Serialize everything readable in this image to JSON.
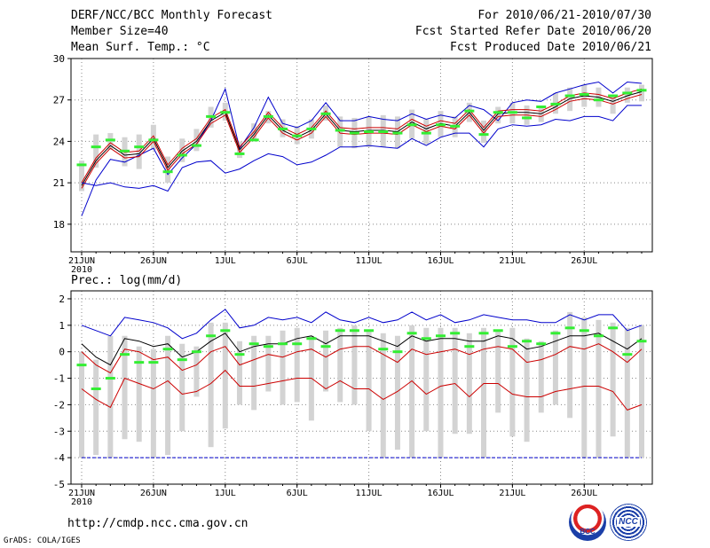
{
  "header": {
    "title": "DERF/NCC/BCC Monthly Forecast",
    "member": "Member Size=40",
    "variable": "Mean Surf. Temp.: °C",
    "period": "For 2010/06/21-2010/07/30",
    "refer": "Fcst Started Refer Date 2010/06/20",
    "produced": "Fcst Produced Date 2010/06/21"
  },
  "footer": {
    "url": "http://cmdp.ncc.cma.gov.cn",
    "grads": "GrADS: COLA/IGES",
    "logo1_text": "BCC",
    "logo2_text": "NCC"
  },
  "chart_data": [
    {
      "type": "line",
      "title": "Mean Surf. Temp.: °C",
      "ylim": [
        16,
        30
      ],
      "yticks": [
        18,
        21,
        24,
        27,
        30
      ],
      "xticks": [
        {
          "i": 0,
          "label": "21JUN"
        },
        {
          "i": 5,
          "label": "26JUN"
        },
        {
          "i": 10,
          "label": "1JUL"
        },
        {
          "i": 15,
          "label": "6JUL"
        },
        {
          "i": 20,
          "label": "11JUL"
        },
        {
          "i": 25,
          "label": "16JUL"
        },
        {
          "i": 30,
          "label": "21JUL"
        },
        {
          "i": 35,
          "label": "26JUL"
        }
      ],
      "year_label": "2010",
      "days": 40,
      "series": [
        {
          "name": "max",
          "color": "#0000cc",
          "values": [
            18.6,
            21.2,
            22.7,
            22.5,
            23.0,
            23.5,
            21.6,
            22.8,
            23.8,
            25.5,
            27.8,
            23.5,
            25.0,
            27.2,
            25.3,
            25.0,
            25.5,
            26.8,
            25.5,
            25.5,
            25.8,
            25.6,
            25.5,
            26.0,
            25.6,
            25.9,
            25.7,
            26.6,
            26.3,
            25.5,
            26.8,
            27.0,
            26.9,
            27.5,
            27.8,
            28.1,
            28.3,
            27.5,
            28.3,
            28.2
          ]
        },
        {
          "name": "upper",
          "color": "#cc0000",
          "values": [
            21.0,
            22.8,
            23.9,
            23.2,
            23.3,
            24.4,
            22.3,
            23.5,
            24.2,
            25.7,
            26.3,
            23.6,
            24.7,
            26.1,
            25.0,
            24.5,
            25.0,
            26.2,
            25.0,
            24.9,
            25.0,
            25.0,
            24.9,
            25.6,
            25.1,
            25.5,
            25.3,
            26.3,
            25.0,
            26.2,
            26.3,
            26.3,
            26.2,
            26.7,
            27.3,
            27.5,
            27.4,
            27.1,
            27.5,
            27.8
          ]
        },
        {
          "name": "mean",
          "color": "#000000",
          "values": [
            20.8,
            22.6,
            23.7,
            23.0,
            23.1,
            24.2,
            22.1,
            23.3,
            24.0,
            25.5,
            26.1,
            23.4,
            24.5,
            25.9,
            24.8,
            24.3,
            24.8,
            26.0,
            24.8,
            24.7,
            24.8,
            24.8,
            24.7,
            25.4,
            24.9,
            25.3,
            25.1,
            26.1,
            24.8,
            26.0,
            26.1,
            26.1,
            26.0,
            26.5,
            27.1,
            27.3,
            27.2,
            26.9,
            27.3,
            27.6
          ]
        },
        {
          "name": "lower",
          "color": "#cc0000",
          "values": [
            20.6,
            22.4,
            23.5,
            22.8,
            22.9,
            24.0,
            21.9,
            23.1,
            23.8,
            25.3,
            25.9,
            23.2,
            24.3,
            25.7,
            24.6,
            24.1,
            24.6,
            25.8,
            24.6,
            24.5,
            24.6,
            24.6,
            24.5,
            25.2,
            24.7,
            25.1,
            24.9,
            25.9,
            24.6,
            25.8,
            25.9,
            25.9,
            25.8,
            26.3,
            26.9,
            27.1,
            27.0,
            26.7,
            27.1,
            27.4
          ]
        },
        {
          "name": "min",
          "color": "#0000cc",
          "values": [
            21.0,
            20.8,
            21.0,
            20.7,
            20.6,
            20.8,
            20.4,
            22.1,
            22.5,
            22.6,
            21.7,
            22.0,
            22.6,
            23.1,
            22.9,
            22.3,
            22.5,
            23.0,
            23.6,
            23.6,
            23.7,
            23.6,
            23.5,
            24.2,
            23.7,
            24.3,
            24.6,
            24.6,
            23.6,
            24.9,
            25.2,
            25.1,
            25.2,
            25.6,
            25.5,
            25.8,
            25.8,
            25.5,
            26.6,
            26.6
          ]
        }
      ],
      "observed": [
        22.3,
        23.6,
        24.1,
        23.3,
        23.6,
        24.1,
        21.8,
        23.0,
        23.7,
        25.8,
        26.1,
        23.1,
        24.1,
        25.8,
        24.9,
        24.4,
        24.9,
        26.0,
        24.8,
        24.6,
        24.7,
        24.7,
        24.6,
        25.2,
        24.6,
        25.2,
        25.1,
        26.2,
        24.5,
        26.1,
        26.1,
        25.7,
        26.5,
        26.7,
        27.3,
        27.4,
        27.0,
        27.3,
        27.5,
        27.7
      ],
      "box_low": [
        20.4,
        22.1,
        23.4,
        22.2,
        22.0,
        23.4,
        21.0,
        22.5,
        23.3,
        25.0,
        25.5,
        22.8,
        24.0,
        25.3,
        24.3,
        23.8,
        24.2,
        25.5,
        23.6,
        23.5,
        23.6,
        23.6,
        23.5,
        24.2,
        23.8,
        24.3,
        24.3,
        25.4,
        23.9,
        25.3,
        25.3,
        25.2,
        25.4,
        26.0,
        26.2,
        26.5,
        26.5,
        26.0,
        26.8,
        26.9
      ],
      "box_high": [
        22.6,
        24.5,
        24.6,
        24.3,
        24.5,
        25.2,
        22.9,
        24.2,
        24.9,
        26.5,
        26.8,
        24.0,
        25.3,
        26.2,
        25.6,
        25.1,
        25.6,
        26.6,
        25.8,
        25.7,
        25.8,
        25.9,
        25.8,
        26.3,
        25.6,
        26.2,
        25.8,
        26.8,
        25.5,
        26.5,
        26.8,
        26.6,
        26.5,
        27.5,
        27.9,
        28.1,
        27.9,
        27.4,
        27.9,
        28.1
      ]
    },
    {
      "type": "line",
      "title": "Prec.: log(mm/d)",
      "ylim": [
        -5,
        2.3
      ],
      "yticks": [
        -5,
        -4,
        -3,
        -2,
        -1,
        0,
        1,
        2
      ],
      "xticks": [
        {
          "i": 0,
          "label": "21JUN"
        },
        {
          "i": 5,
          "label": "26JUN"
        },
        {
          "i": 10,
          "label": "1JUL"
        },
        {
          "i": 15,
          "label": "6JUL"
        },
        {
          "i": 20,
          "label": "11JUL"
        },
        {
          "i": 25,
          "label": "16JUL"
        },
        {
          "i": 30,
          "label": "21JUL"
        },
        {
          "i": 35,
          "label": "26JUL"
        }
      ],
      "year_label": "2010",
      "days": 40,
      "baseline": -4,
      "series": [
        {
          "name": "max",
          "color": "#0000cc",
          "values": [
            1.0,
            0.8,
            0.6,
            1.3,
            1.2,
            1.1,
            0.9,
            0.5,
            0.7,
            1.2,
            1.6,
            0.9,
            1.0,
            1.3,
            1.2,
            1.3,
            1.1,
            1.5,
            1.2,
            1.1,
            1.3,
            1.1,
            1.2,
            1.5,
            1.2,
            1.4,
            1.1,
            1.2,
            1.4,
            1.3,
            1.2,
            1.2,
            1.1,
            1.1,
            1.4,
            1.2,
            1.4,
            1.4,
            0.8,
            1.0
          ]
        },
        {
          "name": "mean",
          "color": "#000000",
          "values": [
            0.3,
            -0.2,
            -0.5,
            0.5,
            0.4,
            0.2,
            0.3,
            -0.2,
            0.0,
            0.4,
            0.7,
            0.0,
            0.2,
            0.3,
            0.3,
            0.5,
            0.6,
            0.3,
            0.6,
            0.6,
            0.6,
            0.4,
            0.2,
            0.6,
            0.4,
            0.5,
            0.5,
            0.4,
            0.4,
            0.6,
            0.5,
            0.1,
            0.2,
            0.4,
            0.6,
            0.6,
            0.7,
            0.4,
            0.1,
            0.5
          ]
        },
        {
          "name": "upper",
          "color": "#cc0000",
          "values": [
            0.0,
            -0.5,
            -0.8,
            0.1,
            0.0,
            -0.3,
            -0.2,
            -0.7,
            -0.5,
            0.0,
            0.2,
            -0.5,
            -0.3,
            -0.1,
            -0.2,
            0.0,
            0.1,
            -0.2,
            0.1,
            0.2,
            0.2,
            -0.1,
            -0.4,
            0.1,
            -0.1,
            0.0,
            0.1,
            -0.1,
            0.1,
            0.2,
            0.1,
            -0.4,
            -0.3,
            -0.1,
            0.2,
            0.1,
            0.3,
            0.0,
            -0.4,
            0.1
          ]
        },
        {
          "name": "lower",
          "color": "#cc0000",
          "values": [
            -1.4,
            -1.8,
            -2.1,
            -1.0,
            -1.2,
            -1.4,
            -1.1,
            -1.6,
            -1.5,
            -1.2,
            -0.7,
            -1.3,
            -1.3,
            -1.2,
            -1.1,
            -1.0,
            -1.0,
            -1.4,
            -1.1,
            -1.4,
            -1.4,
            -1.8,
            -1.5,
            -1.1,
            -1.6,
            -1.3,
            -1.2,
            -1.7,
            -1.2,
            -1.2,
            -1.6,
            -1.7,
            -1.7,
            -1.5,
            -1.4,
            -1.3,
            -1.3,
            -1.5,
            -2.2,
            -2.0
          ]
        }
      ],
      "observed": [
        -0.5,
        -1.4,
        -1.0,
        -0.1,
        -0.4,
        -0.4,
        0.1,
        -0.3,
        0.0,
        0.6,
        0.8,
        -0.1,
        0.3,
        0.2,
        0.3,
        0.3,
        0.5,
        0.2,
        0.8,
        0.8,
        0.8,
        0.1,
        0.0,
        0.7,
        0.5,
        0.6,
        0.7,
        0.2,
        0.7,
        0.8,
        0.2,
        0.4,
        0.3,
        0.7,
        0.9,
        0.8,
        0.6,
        0.9,
        -0.1,
        0.4
      ],
      "box_low": [
        -4.0,
        -3.9,
        -4.0,
        -3.3,
        -3.4,
        -4.0,
        -3.9,
        -3.0,
        -1.7,
        -3.6,
        -2.9,
        -2.0,
        -2.2,
        -1.5,
        -2.0,
        -1.9,
        -2.6,
        -1.5,
        -1.9,
        -2.0,
        -3.0,
        -4.0,
        -3.7,
        -4.0,
        -3.0,
        -4.0,
        -3.1,
        -3.1,
        -4.0,
        -2.3,
        -3.2,
        -3.4,
        -2.3,
        -2.0,
        -2.5,
        -4.0,
        -4.0,
        -3.2,
        -4.0,
        -4.0
      ],
      "box_high": [
        0.0,
        -0.3,
        0.6,
        0.6,
        0.2,
        0.1,
        0.6,
        0.3,
        0.2,
        1.1,
        1.1,
        0.4,
        0.6,
        0.6,
        0.8,
        0.9,
        0.6,
        0.8,
        0.9,
        1.0,
        0.8,
        0.7,
        0.6,
        1.0,
        0.9,
        0.9,
        0.9,
        0.7,
        0.9,
        0.8,
        0.9,
        0.5,
        0.4,
        0.8,
        1.5,
        1.3,
        1.2,
        1.1,
        0.9,
        1.0
      ]
    }
  ]
}
